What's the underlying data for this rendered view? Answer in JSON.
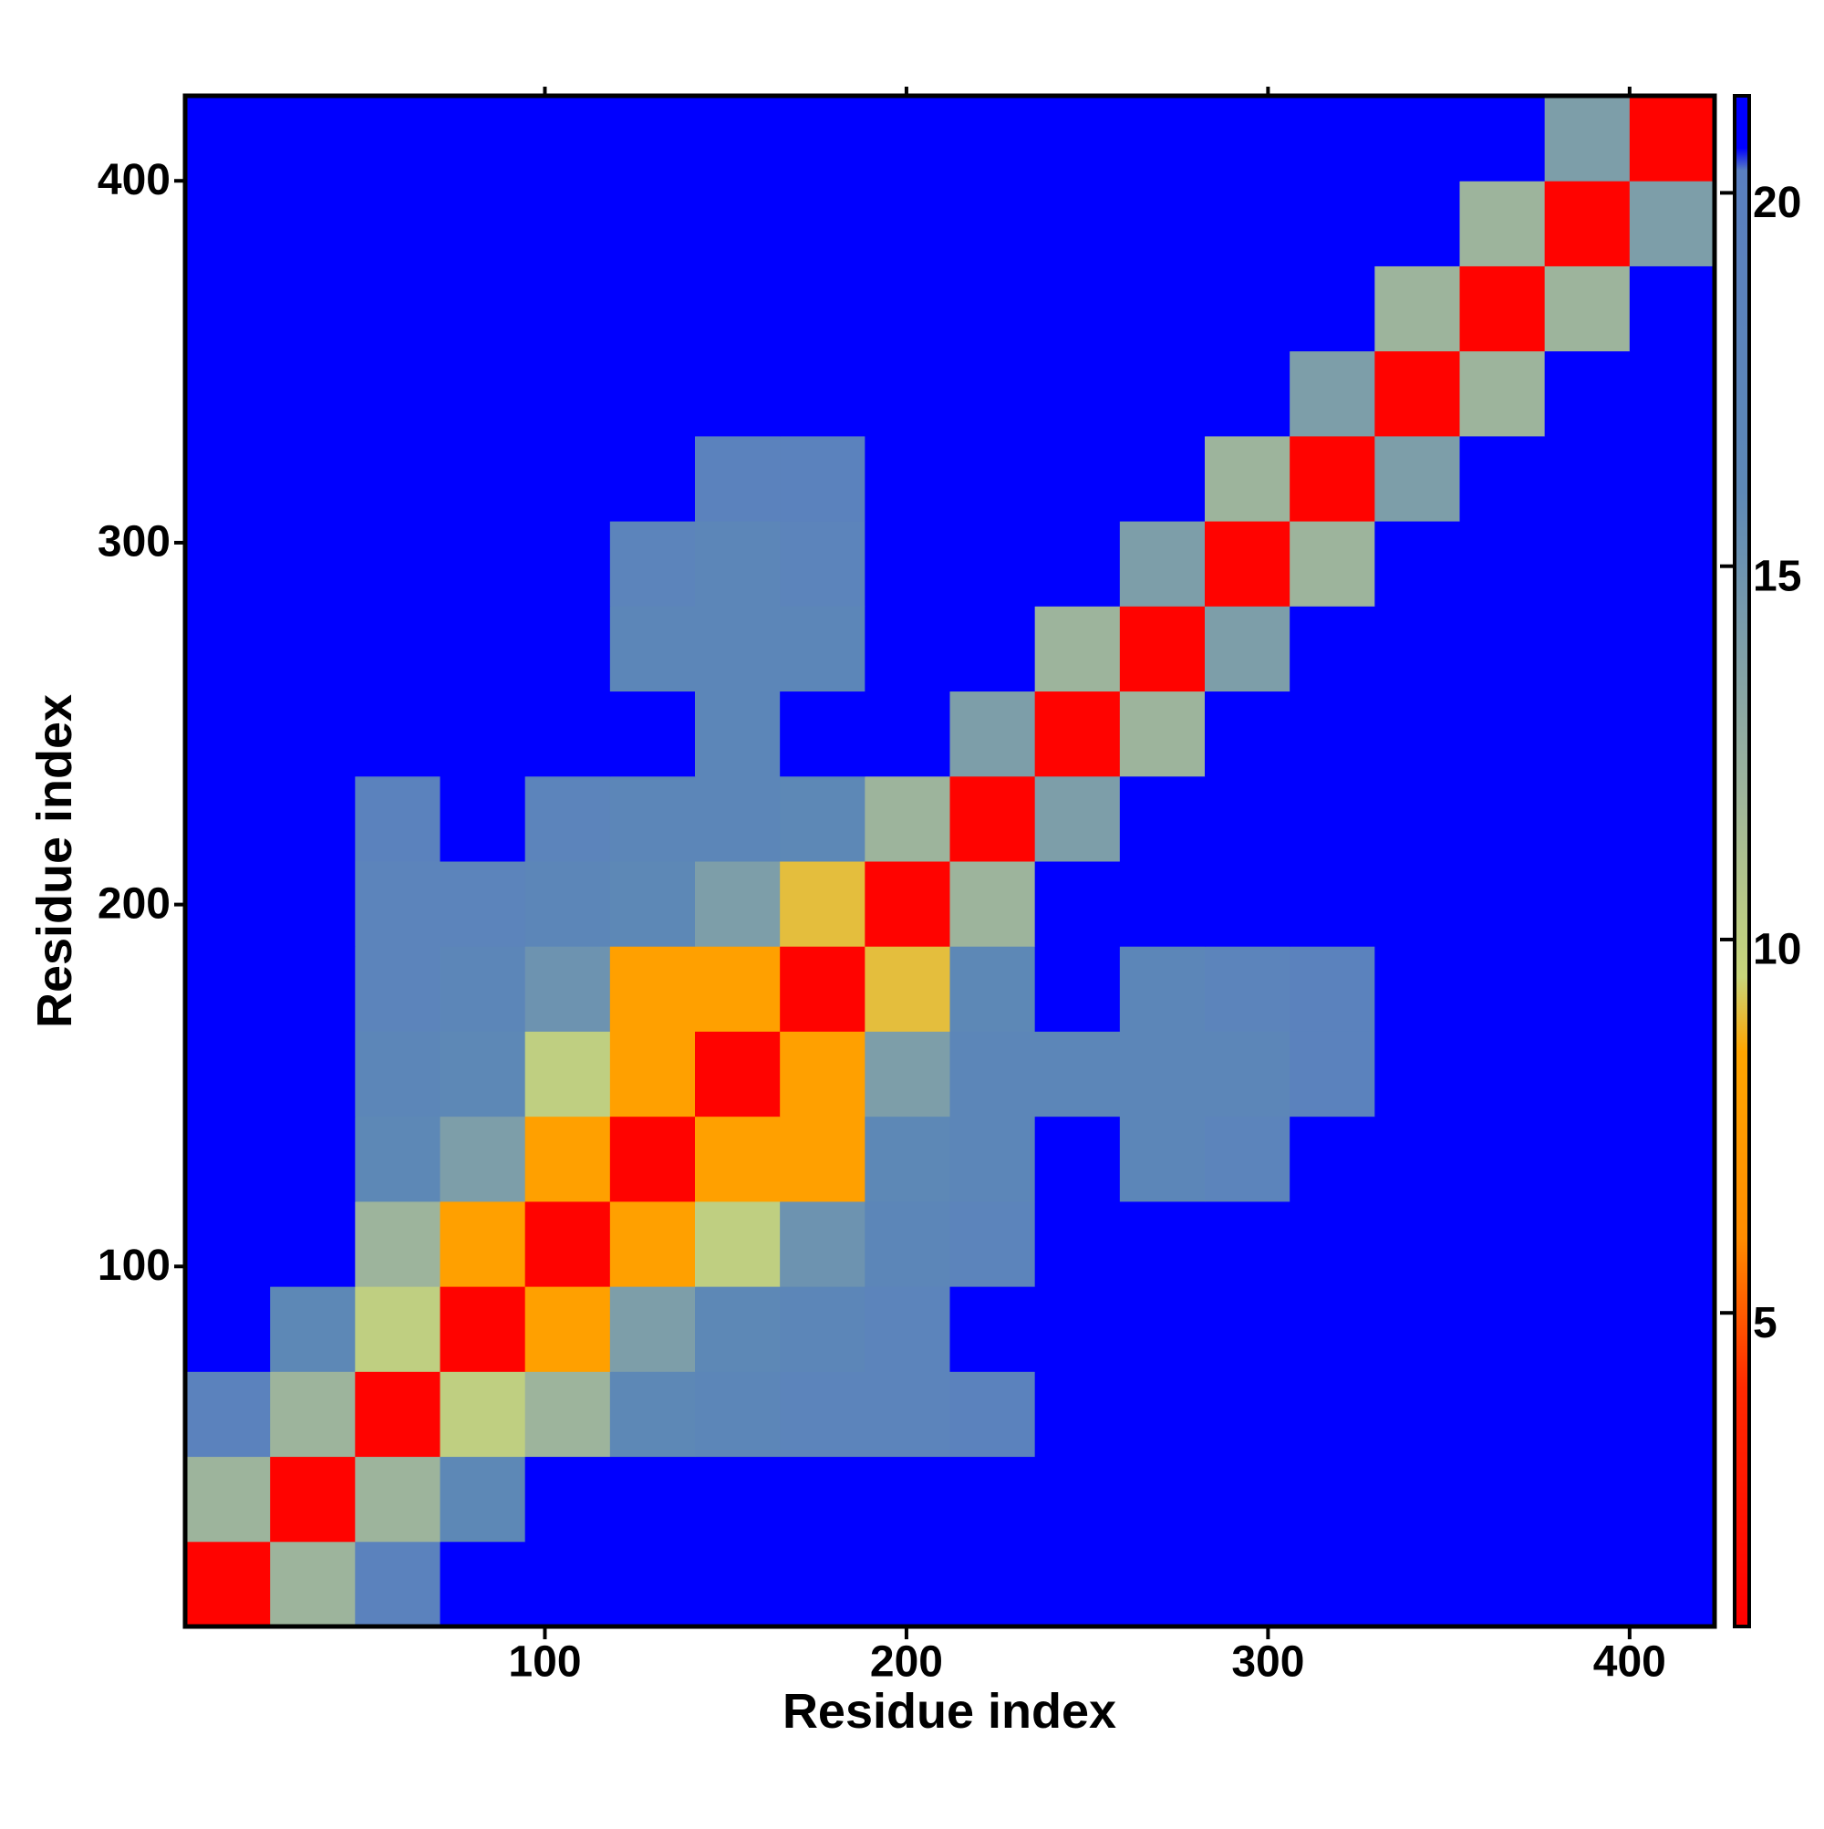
{
  "chart_data": {
    "type": "heatmap",
    "x_label": "Residue index",
    "y_label": "Residue index",
    "x_bins": [
      0.5,
      24,
      47.5,
      71,
      94.5,
      118,
      141.5,
      165,
      188.5,
      212,
      235.5,
      259,
      282.5,
      306,
      329.5,
      353,
      376.5,
      400,
      423.5
    ],
    "y_bins": [
      0.5,
      24,
      47.5,
      71,
      94.5,
      118,
      141.5,
      165,
      188.5,
      212,
      235.5,
      259,
      282.5,
      306,
      329.5,
      353,
      376.5,
      400,
      423.5
    ],
    "values": [
      [
        1,
        12,
        19,
        21,
        21,
        21,
        21,
        21,
        21,
        21,
        21,
        21,
        21,
        21,
        21,
        21,
        21,
        21
      ],
      [
        12,
        1,
        12,
        16,
        21,
        21,
        21,
        21,
        21,
        21,
        21,
        21,
        21,
        21,
        21,
        21,
        21,
        21
      ],
      [
        19,
        12,
        1,
        10,
        12,
        16,
        17,
        18,
        18,
        19,
        21,
        21,
        21,
        21,
        21,
        21,
        21,
        21
      ],
      [
        21,
        16,
        10,
        1,
        8,
        14,
        16,
        17,
        18,
        21,
        21,
        21,
        21,
        21,
        21,
        21,
        21,
        21
      ],
      [
        21,
        21,
        12,
        8,
        1,
        8,
        10,
        15,
        17,
        18,
        21,
        21,
        21,
        21,
        21,
        21,
        21,
        21
      ],
      [
        21,
        21,
        16,
        14,
        8,
        1,
        8,
        8,
        16,
        17,
        21,
        17,
        18,
        21,
        21,
        21,
        21,
        21
      ],
      [
        21,
        21,
        17,
        16,
        10,
        8,
        1,
        8,
        14,
        17,
        17,
        17,
        17,
        19,
        21,
        21,
        21,
        21
      ],
      [
        21,
        21,
        18,
        17,
        15,
        8,
        8,
        1,
        9,
        16,
        21,
        17,
        18,
        19,
        21,
        21,
        21,
        21
      ],
      [
        21,
        21,
        18,
        18,
        17,
        16,
        14,
        9,
        1,
        12,
        21,
        21,
        21,
        21,
        21,
        21,
        21,
        21
      ],
      [
        21,
        21,
        19,
        21,
        18,
        17,
        17,
        16,
        12,
        1,
        14,
        21,
        21,
        21,
        21,
        21,
        21,
        21
      ],
      [
        21,
        21,
        21,
        21,
        21,
        21,
        17,
        21,
        21,
        14,
        1,
        12,
        21,
        21,
        21,
        21,
        21,
        21
      ],
      [
        21,
        21,
        21,
        21,
        21,
        17,
        17,
        17,
        21,
        21,
        12,
        1,
        14,
        21,
        21,
        21,
        21,
        21
      ],
      [
        21,
        21,
        21,
        21,
        21,
        18,
        17,
        18,
        21,
        21,
        21,
        14,
        1,
        12,
        21,
        21,
        21,
        21
      ],
      [
        21,
        21,
        21,
        21,
        21,
        21,
        19,
        19,
        21,
        21,
        21,
        21,
        12,
        1,
        14,
        21,
        21,
        21
      ],
      [
        21,
        21,
        21,
        21,
        21,
        21,
        21,
        21,
        21,
        21,
        21,
        21,
        21,
        14,
        1,
        12,
        21,
        21
      ],
      [
        21,
        21,
        21,
        21,
        21,
        21,
        21,
        21,
        21,
        21,
        21,
        21,
        21,
        21,
        12,
        1,
        12,
        21
      ],
      [
        21,
        21,
        21,
        21,
        21,
        21,
        21,
        21,
        21,
        21,
        21,
        21,
        21,
        21,
        21,
        12,
        1,
        14
      ],
      [
        21,
        21,
        21,
        21,
        21,
        21,
        21,
        21,
        21,
        21,
        21,
        21,
        21,
        21,
        21,
        21,
        14,
        1
      ]
    ],
    "xlim": [
      0.5,
      423.5
    ],
    "ylim": [
      0.5,
      423.5
    ],
    "xticks": [
      100,
      200,
      300,
      400
    ],
    "yticks": [
      100,
      200,
      300,
      400
    ],
    "clim": [
      0.8,
      21.3
    ],
    "cticks": [
      5,
      10,
      15,
      20
    ],
    "colorscale": [
      {
        "value": 0.8,
        "color": "#ff0000"
      },
      {
        "value": 4,
        "color": "#ff2a00"
      },
      {
        "value": 6,
        "color": "#ff8c00"
      },
      {
        "value": 8.5,
        "color": "#ffa500"
      },
      {
        "value": 9.5,
        "color": "#c8d67a"
      },
      {
        "value": 12,
        "color": "#9db49c"
      },
      {
        "value": 16,
        "color": "#5d88b6"
      },
      {
        "value": 20.3,
        "color": "#5a7fc0"
      },
      {
        "value": 20.6,
        "color": "#0000ff"
      },
      {
        "value": 21.3,
        "color": "#0000ff"
      }
    ]
  }
}
